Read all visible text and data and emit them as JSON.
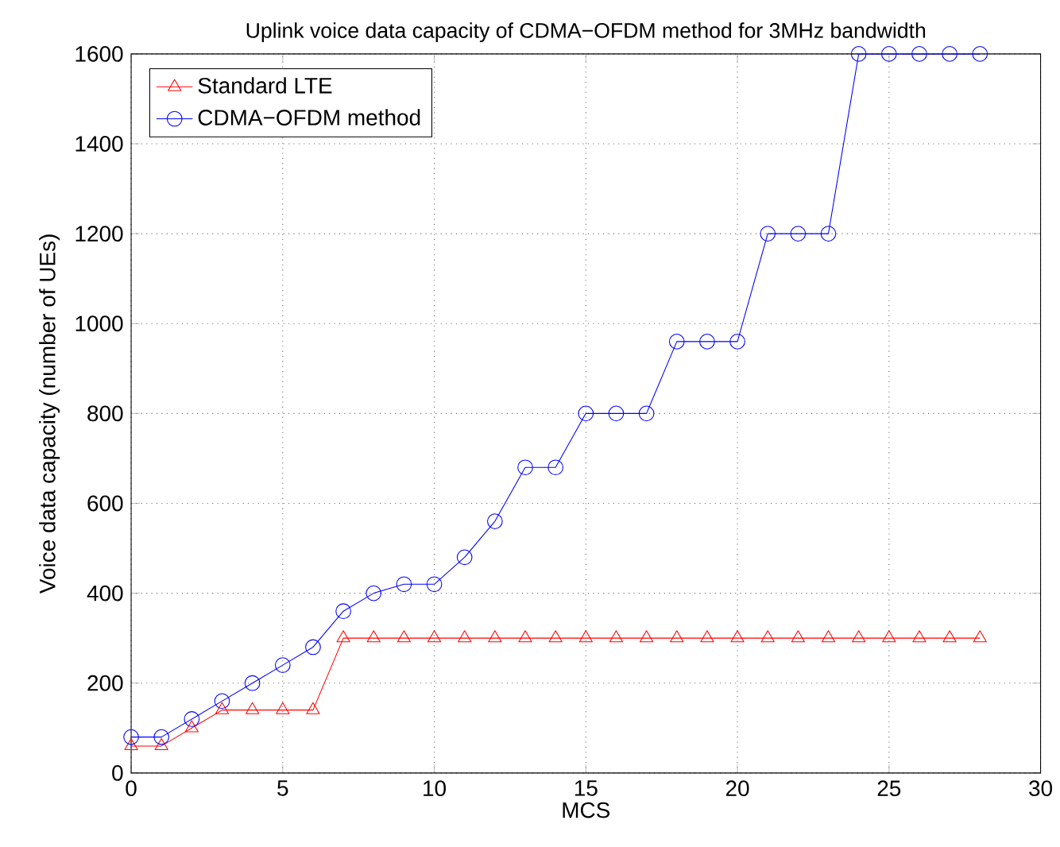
{
  "chart_data": {
    "type": "line",
    "title": "Uplink voice data capacity of CDMA−OFDM method for 3MHz bandwidth",
    "xlabel": "MCS",
    "ylabel": "Voice data capacity (number of UEs)",
    "x": [
      0,
      1,
      2,
      3,
      4,
      5,
      6,
      7,
      8,
      9,
      10,
      11,
      12,
      13,
      14,
      15,
      16,
      17,
      18,
      19,
      20,
      21,
      22,
      23,
      24,
      25,
      26,
      27,
      28
    ],
    "series": [
      {
        "name": "Standard LTE",
        "color": "#ff0000",
        "marker": "triangle",
        "values": [
          60,
          60,
          100,
          140,
          140,
          140,
          140,
          300,
          300,
          300,
          300,
          300,
          300,
          300,
          300,
          300,
          300,
          300,
          300,
          300,
          300,
          300,
          300,
          300,
          300,
          300,
          300,
          300,
          300
        ]
      },
      {
        "name": "CDMA−OFDM method",
        "color": "#0000ff",
        "marker": "circle",
        "values": [
          80,
          80,
          120,
          160,
          200,
          240,
          280,
          360,
          400,
          420,
          420,
          480,
          560,
          680,
          680,
          800,
          800,
          800,
          960,
          960,
          960,
          1200,
          1200,
          1200,
          1600,
          1600,
          1600,
          1600,
          1600
        ]
      }
    ],
    "xlim": [
      0,
      30
    ],
    "ylim": [
      0,
      1600
    ],
    "xticks": [
      0,
      5,
      10,
      15,
      20,
      25,
      30
    ],
    "yticks": [
      0,
      200,
      400,
      600,
      800,
      1000,
      1200,
      1400,
      1600
    ],
    "grid": true,
    "legend": "top left",
    "line_style": "solid"
  }
}
